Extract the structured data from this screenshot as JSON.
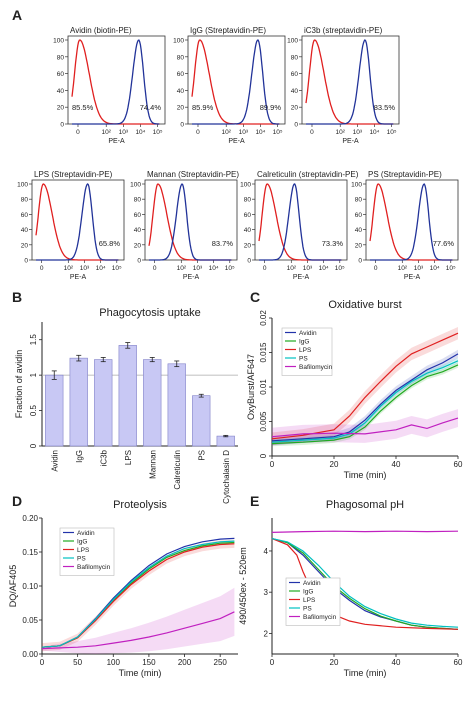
{
  "colors": {
    "avidin": "#2233aa",
    "igg": "#22aa22",
    "lps": "#e02020",
    "ps": "#00c0c0",
    "bafilomycin": "#c020c0",
    "flow_red": "#e02020",
    "flow_blue": "#223399",
    "bar_fill": "#c8c8f4",
    "bar_stroke": "#8080c8"
  },
  "chart_data": [
    {
      "panel": "A",
      "type": "histogram",
      "ylim": [
        0,
        100
      ],
      "yticks": [
        "0",
        "20",
        "40",
        "60",
        "80",
        "100"
      ],
      "xticks": [
        "0",
        "10²",
        "10³",
        "10⁴",
        "10⁵"
      ],
      "histograms": [
        {
          "title": "Avidin (biotin-PE)",
          "xlabel": "PE-A",
          "left_pct": "85.5%",
          "right_pct": "74.4%",
          "red_peak": 0.45,
          "blue_peak": 3.9
        },
        {
          "title": "IgG (Streptavidin-PE)",
          "xlabel": "PE-A",
          "left_pct": "85.9%",
          "right_pct": "89.9%",
          "red_peak": 0.45,
          "blue_peak": 3.85
        },
        {
          "title": "iC3b (streptavidin-PE)",
          "xlabel": "PE-A",
          "left_pct": "",
          "right_pct": "83.5%",
          "red_peak": 0.5,
          "blue_peak": 3.45
        },
        {
          "title": "LPS (Streptavidin-PE)",
          "xlabel": "PE-A",
          "left_pct": "",
          "right_pct": "65.8%",
          "red_peak": 0.45,
          "blue_peak": 3.2
        },
        {
          "title": "Mannan (Streptavidin-PE)",
          "xlabel": "PE-A",
          "left_pct": "",
          "right_pct": "83.7%",
          "red_peak": 0.55,
          "blue_peak": 2.05
        },
        {
          "title": "Calreticulin (streptavidin-PE)",
          "xlabel": "PE-A",
          "left_pct": "",
          "right_pct": "73.3%",
          "red_peak": 0.5,
          "blue_peak": 2.2
        },
        {
          "title": "PS (Streptavidin-PE)",
          "xlabel": "PE-A",
          "left_pct": "",
          "right_pct": "77.6%",
          "red_peak": 0.5,
          "blue_peak": 3.35
        }
      ]
    },
    {
      "panel": "B",
      "type": "bar",
      "title": "Phagocytosis uptake",
      "ylabel": "Fraction of avidin",
      "categories": [
        "Avidin",
        "IgG",
        "iC3b",
        "LPS",
        "Mannan",
        "Calreticulin",
        "PS",
        "Cytochalasin D"
      ],
      "values": [
        1.0,
        1.24,
        1.22,
        1.42,
        1.22,
        1.16,
        0.71,
        0.14
      ],
      "errors": [
        0.06,
        0.04,
        0.03,
        0.04,
        0.03,
        0.04,
        0.02,
        0.01
      ],
      "ylim": [
        0,
        1.75
      ],
      "yticks": [
        "0",
        "0.5",
        "1",
        "1.5"
      ],
      "reference_line": 1.0
    },
    {
      "panel": "C",
      "type": "line",
      "title": "Oxidative burst",
      "xlabel": "Time (min)",
      "ylabel": "OxyBurst/AF647",
      "xlim": [
        0,
        60
      ],
      "ylim": [
        0,
        0.02
      ],
      "xticks": [
        "0",
        "20",
        "40",
        "60"
      ],
      "yticks": [
        "0",
        "0.005",
        "0.01",
        "0.015",
        "0.02"
      ],
      "series": [
        {
          "name": "Avidin",
          "x": [
            0,
            10,
            20,
            25,
            30,
            35,
            40,
            45,
            50,
            55,
            60
          ],
          "y": [
            0.0022,
            0.0025,
            0.0028,
            0.0035,
            0.0052,
            0.0075,
            0.0095,
            0.011,
            0.0125,
            0.0135,
            0.0148
          ]
        },
        {
          "name": "IgG",
          "x": [
            0,
            10,
            20,
            25,
            30,
            35,
            40,
            45,
            50,
            55,
            60
          ],
          "y": [
            0.0018,
            0.002,
            0.0023,
            0.0028,
            0.0042,
            0.0065,
            0.0085,
            0.0102,
            0.0115,
            0.0122,
            0.0132
          ]
        },
        {
          "name": "LPS",
          "x": [
            0,
            10,
            20,
            25,
            30,
            35,
            40,
            45,
            50,
            55,
            60
          ],
          "y": [
            0.0025,
            0.003,
            0.0038,
            0.0058,
            0.0085,
            0.0108,
            0.013,
            0.0148,
            0.0158,
            0.0168,
            0.0178
          ]
        },
        {
          "name": "PS",
          "x": [
            0,
            10,
            20,
            25,
            30,
            35,
            40,
            45,
            50,
            55,
            60
          ],
          "y": [
            0.002,
            0.0023,
            0.0026,
            0.0032,
            0.0048,
            0.0072,
            0.0092,
            0.0108,
            0.012,
            0.0128,
            0.0138
          ]
        },
        {
          "name": "Bafilomycin",
          "x": [
            0,
            10,
            20,
            30,
            40,
            45,
            50,
            55,
            60
          ],
          "y": [
            0.0028,
            0.0032,
            0.0033,
            0.0032,
            0.0038,
            0.0045,
            0.004,
            0.0048,
            0.0055
          ]
        }
      ]
    },
    {
      "panel": "D",
      "type": "line",
      "title": "Proteolysis",
      "xlabel": "Time (min)",
      "ylabel": "DQ/AF405",
      "xlim": [
        0,
        275
      ],
      "ylim": [
        0,
        0.2
      ],
      "xticks": [
        "0",
        "50",
        "100",
        "150",
        "200",
        "250"
      ],
      "yticks": [
        "0.00",
        "0.05",
        "0.10",
        "0.15",
        "0.20"
      ],
      "series": [
        {
          "name": "Avidin",
          "x": [
            0,
            25,
            50,
            75,
            100,
            125,
            150,
            175,
            200,
            225,
            250,
            270
          ],
          "y": [
            0.01,
            0.012,
            0.025,
            0.052,
            0.082,
            0.108,
            0.13,
            0.147,
            0.158,
            0.165,
            0.169,
            0.17
          ]
        },
        {
          "name": "IgG",
          "x": [
            0,
            25,
            50,
            75,
            100,
            125,
            150,
            175,
            200,
            225,
            250,
            270
          ],
          "y": [
            0.01,
            0.012,
            0.024,
            0.05,
            0.079,
            0.104,
            0.125,
            0.142,
            0.152,
            0.159,
            0.163,
            0.164
          ]
        },
        {
          "name": "LPS",
          "x": [
            0,
            25,
            50,
            75,
            100,
            125,
            150,
            175,
            200,
            225,
            250,
            270
          ],
          "y": [
            0.01,
            0.012,
            0.024,
            0.049,
            0.077,
            0.102,
            0.122,
            0.139,
            0.15,
            0.157,
            0.161,
            0.162
          ]
        },
        {
          "name": "PS",
          "x": [
            0,
            25,
            50,
            75,
            100,
            125,
            150,
            175,
            200,
            225,
            250,
            270
          ],
          "y": [
            0.01,
            0.012,
            0.025,
            0.051,
            0.08,
            0.106,
            0.127,
            0.144,
            0.155,
            0.161,
            0.165,
            0.166
          ]
        },
        {
          "name": "Bafilomycin",
          "x": [
            0,
            25,
            50,
            75,
            100,
            125,
            150,
            175,
            200,
            225,
            250,
            270
          ],
          "y": [
            0.008,
            0.009,
            0.01,
            0.012,
            0.016,
            0.02,
            0.025,
            0.031,
            0.038,
            0.045,
            0.052,
            0.062
          ]
        }
      ]
    },
    {
      "panel": "E",
      "type": "line",
      "title": "Phagosomal pH",
      "xlabel": "Time (min)",
      "ylabel": "490/450ex - 520em",
      "xlim": [
        0,
        60
      ],
      "ylim": [
        1.5,
        4.8
      ],
      "xticks": [
        "0",
        "20",
        "40",
        "60"
      ],
      "yticks": [
        "2",
        "3",
        "4"
      ],
      "series": [
        {
          "name": "Avidin",
          "x": [
            0,
            5,
            10,
            15,
            20,
            25,
            30,
            35,
            40,
            45,
            50,
            55,
            60
          ],
          "y": [
            4.3,
            4.2,
            3.9,
            3.5,
            3.1,
            2.8,
            2.55,
            2.4,
            2.3,
            2.2,
            2.15,
            2.12,
            2.1
          ]
        },
        {
          "name": "IgG",
          "x": [
            0,
            5,
            10,
            15,
            20,
            25,
            30,
            35,
            40,
            45,
            50,
            55,
            60
          ],
          "y": [
            4.3,
            4.2,
            3.95,
            3.55,
            3.15,
            2.85,
            2.6,
            2.42,
            2.3,
            2.2,
            2.15,
            2.12,
            2.1
          ]
        },
        {
          "name": "LPS",
          "x": [
            0,
            5,
            8,
            10,
            13,
            15,
            20,
            25,
            30,
            40,
            50,
            60
          ],
          "y": [
            4.3,
            4.15,
            3.9,
            3.5,
            3.0,
            2.75,
            2.45,
            2.3,
            2.22,
            2.15,
            2.12,
            2.1
          ]
        },
        {
          "name": "PS",
          "x": [
            0,
            5,
            10,
            15,
            20,
            25,
            30,
            35,
            40,
            45,
            50,
            55,
            60
          ],
          "y": [
            4.3,
            4.22,
            4.0,
            3.65,
            3.25,
            2.9,
            2.65,
            2.48,
            2.35,
            2.25,
            2.2,
            2.17,
            2.15
          ]
        },
        {
          "name": "Bafilomycin",
          "x": [
            0,
            10,
            20,
            30,
            40,
            50,
            60
          ],
          "y": [
            4.45,
            4.47,
            4.48,
            4.47,
            4.48,
            4.47,
            4.48
          ]
        }
      ]
    }
  ],
  "labels": {
    "A": "A",
    "B": "B",
    "C": "C",
    "D": "D",
    "E": "E",
    "legend_names": [
      "Avidin",
      "IgG",
      "LPS",
      "PS",
      "Bafilomycin"
    ]
  }
}
